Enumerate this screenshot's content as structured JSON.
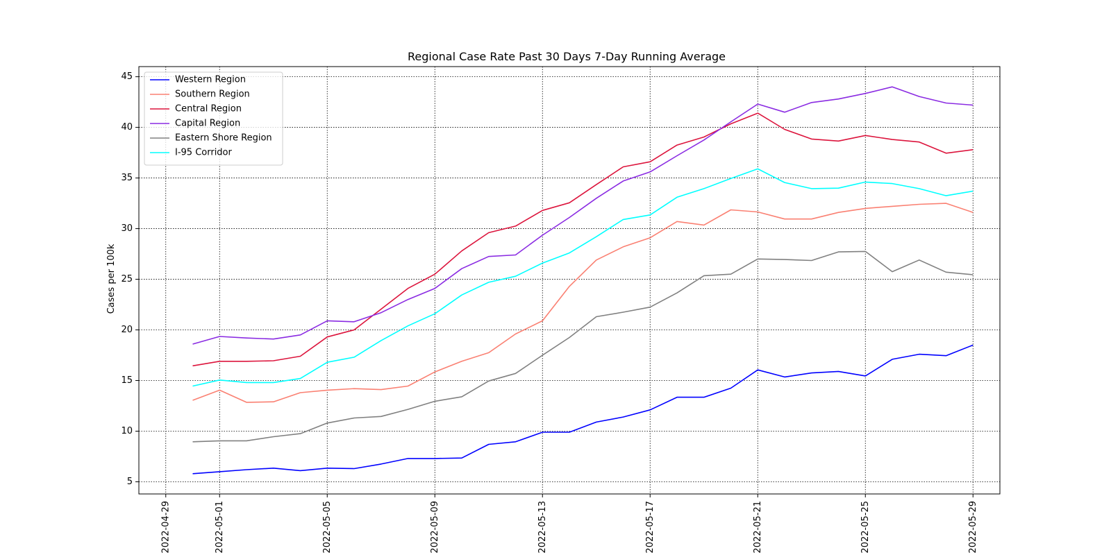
{
  "chart_data": {
    "type": "line",
    "title": "Regional Case Rate  Past 30 Days 7-Day Running Average",
    "xlabel": "",
    "ylabel": "Cases per 100k",
    "x_ticks": [
      "2022-04-29",
      "2022-05-01",
      "2022-05-05",
      "2022-05-09",
      "2022-05-13",
      "2022-05-17",
      "2022-05-21",
      "2022-05-25",
      "2022-05-29"
    ],
    "y_ticks": [
      5,
      10,
      15,
      20,
      25,
      30,
      35,
      40,
      45
    ],
    "xlim": [
      "2022-04-28",
      "2022-05-30"
    ],
    "ylim": [
      3.8,
      46
    ],
    "grid": true,
    "legend_position": "top-left",
    "x": [
      "2022-04-30",
      "2022-05-01",
      "2022-05-02",
      "2022-05-03",
      "2022-05-04",
      "2022-05-05",
      "2022-05-06",
      "2022-05-07",
      "2022-05-08",
      "2022-05-09",
      "2022-05-10",
      "2022-05-11",
      "2022-05-12",
      "2022-05-13",
      "2022-05-14",
      "2022-05-15",
      "2022-05-16",
      "2022-05-17",
      "2022-05-18",
      "2022-05-19",
      "2022-05-20",
      "2022-05-21",
      "2022-05-22",
      "2022-05-23",
      "2022-05-24",
      "2022-05-25",
      "2022-05-26",
      "2022-05-27",
      "2022-05-28",
      "2022-05-29"
    ],
    "series": [
      {
        "name": "Western Region",
        "color": "#0000ff",
        "values": [
          5.8,
          6.0,
          6.2,
          6.35,
          6.1,
          6.35,
          6.3,
          6.75,
          7.3,
          7.3,
          7.35,
          8.7,
          8.95,
          9.9,
          9.9,
          10.9,
          11.4,
          12.1,
          13.35,
          13.35,
          14.25,
          16.05,
          15.35,
          15.75,
          15.9,
          15.45,
          17.1,
          17.6,
          17.45,
          18.5
        ]
      },
      {
        "name": "Southern Region",
        "color": "#fa8072",
        "values": [
          13.05,
          14.05,
          12.85,
          12.9,
          13.8,
          14.05,
          14.2,
          14.1,
          14.45,
          15.85,
          16.9,
          17.75,
          19.6,
          20.9,
          24.3,
          26.9,
          28.2,
          29.1,
          30.7,
          30.35,
          31.85,
          31.65,
          30.95,
          30.95,
          31.6,
          32.0,
          32.2,
          32.4,
          32.5,
          31.6
        ]
      },
      {
        "name": "Central Region",
        "color": "#dc143c",
        "values": [
          16.45,
          16.9,
          16.9,
          16.95,
          17.4,
          19.3,
          20.0,
          22.05,
          24.1,
          25.5,
          27.8,
          29.6,
          30.25,
          31.8,
          32.55,
          34.35,
          36.1,
          36.6,
          38.25,
          39.05,
          40.35,
          41.4,
          39.8,
          38.85,
          38.65,
          39.2,
          38.8,
          38.55,
          37.45,
          37.8
        ]
      },
      {
        "name": "Capital Region",
        "color": "#8a2be2",
        "values": [
          18.6,
          19.35,
          19.2,
          19.1,
          19.5,
          20.9,
          20.8,
          21.7,
          23.0,
          24.1,
          26.05,
          27.25,
          27.4,
          29.35,
          31.1,
          33.0,
          34.7,
          35.6,
          37.2,
          38.75,
          40.55,
          42.3,
          41.5,
          42.45,
          42.8,
          43.35,
          44.0,
          43.05,
          42.4,
          42.2
        ]
      },
      {
        "name": "Eastern Shore Region",
        "color": "#808080",
        "values": [
          8.95,
          9.05,
          9.05,
          9.45,
          9.75,
          10.8,
          11.3,
          11.45,
          12.15,
          12.95,
          13.4,
          14.95,
          15.7,
          17.5,
          19.25,
          21.3,
          21.75,
          22.25,
          23.65,
          25.35,
          25.5,
          27.0,
          26.95,
          26.85,
          27.7,
          27.75,
          25.75,
          26.9,
          25.7,
          25.45
        ]
      },
      {
        "name": "I-95 Corridor",
        "color": "#00ffff",
        "values": [
          14.45,
          15.05,
          14.8,
          14.8,
          15.2,
          16.8,
          17.3,
          18.95,
          20.4,
          21.6,
          23.45,
          24.7,
          25.3,
          26.6,
          27.6,
          29.2,
          30.9,
          31.35,
          33.1,
          33.95,
          34.95,
          35.9,
          34.55,
          33.95,
          34.0,
          34.6,
          34.45,
          33.95,
          33.25,
          33.7
        ]
      }
    ]
  }
}
